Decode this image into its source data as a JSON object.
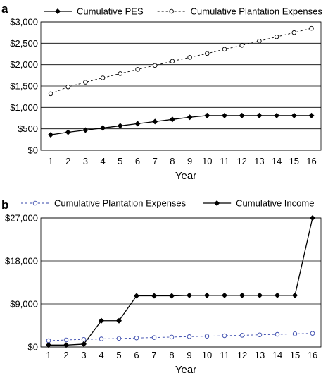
{
  "chart_data": [
    {
      "panel": "a",
      "type": "line",
      "xlabel": "Year",
      "ylabel": "",
      "x": [
        1,
        2,
        3,
        4,
        5,
        6,
        7,
        8,
        9,
        10,
        11,
        12,
        13,
        14,
        15,
        16
      ],
      "ylim": [
        0,
        3000
      ],
      "yticks": [
        0,
        500,
        1000,
        1500,
        2000,
        2500,
        3000
      ],
      "ytick_labels": [
        "$0",
        "$500",
        "$1,000",
        "$1,500",
        "$2,000",
        "$2,500",
        "$3,000"
      ],
      "legend_position": "top",
      "grid": "horizontal",
      "series": [
        {
          "name": "Cumulative PES",
          "style": "solid",
          "marker": "filled-diamond",
          "color": "#000000",
          "values": [
            360,
            420,
            470,
            520,
            570,
            620,
            670,
            720,
            770,
            810,
            810,
            810,
            810,
            810,
            810,
            810
          ]
        },
        {
          "name": "Cumulative Plantation Expenses",
          "style": "dashed",
          "marker": "open-circle",
          "color": "#000000",
          "values": [
            1320,
            1480,
            1590,
            1690,
            1790,
            1890,
            1980,
            2080,
            2170,
            2260,
            2360,
            2450,
            2550,
            2650,
            2750,
            2850
          ]
        }
      ]
    },
    {
      "panel": "b",
      "type": "line",
      "xlabel": "Year",
      "ylabel": "",
      "x": [
        1,
        2,
        3,
        4,
        5,
        6,
        7,
        8,
        9,
        10,
        11,
        12,
        13,
        14,
        15,
        16
      ],
      "ylim": [
        0,
        27000
      ],
      "yticks": [
        0,
        9000,
        18000,
        27000
      ],
      "ytick_labels": [
        "$0",
        "$9,000",
        "$18,000",
        "$27,000"
      ],
      "legend_position": "top",
      "grid": "horizontal",
      "series": [
        {
          "name": "Cumulative Plantation Expenses",
          "style": "dashed",
          "marker": "open-circle",
          "color": "#3344aa",
          "values": [
            1320,
            1480,
            1590,
            1690,
            1790,
            1890,
            1980,
            2080,
            2170,
            2260,
            2360,
            2450,
            2550,
            2650,
            2750,
            2850
          ]
        },
        {
          "name": "Cumulative Income",
          "style": "solid",
          "marker": "filled-diamond",
          "color": "#000000",
          "values": [
            400,
            400,
            600,
            5500,
            5500,
            10700,
            10700,
            10700,
            10800,
            10800,
            10800,
            10800,
            10800,
            10800,
            10800,
            27000
          ]
        }
      ]
    }
  ]
}
